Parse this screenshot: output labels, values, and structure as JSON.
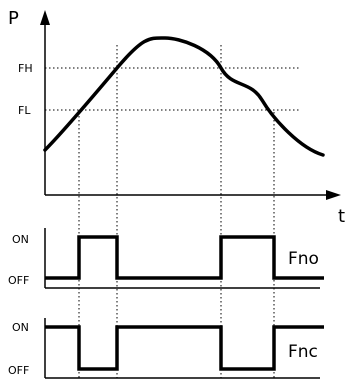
{
  "labels": {
    "y_axis": "P",
    "x_axis": "t",
    "fh": "FH",
    "fl": "FL"
  },
  "signals": [
    {
      "name": "Fno",
      "on_label": "ON",
      "off_label": "OFF"
    },
    {
      "name": "Fnc",
      "on_label": "ON",
      "off_label": "OFF"
    }
  ],
  "colors": {
    "line": "#000000",
    "guide": "#000000",
    "background": "#ffffff"
  }
}
